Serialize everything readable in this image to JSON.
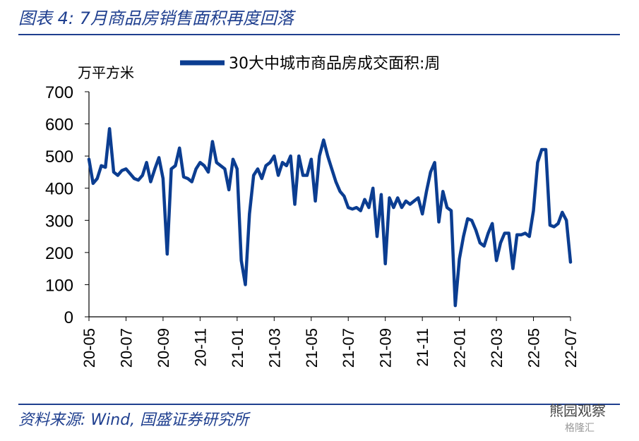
{
  "figure_title": "图表 4:  7月商品房销售面积再度回落",
  "source": "资料来源:  Wind,  国盛证券研究所",
  "watermark": "熊园观察",
  "watermark_sub": "格隆汇",
  "colors": {
    "line": "#0b3d91",
    "accent": "#1f3f8f"
  },
  "chart_data": {
    "type": "line",
    "ylabel": "万平方米",
    "ylim": [
      0,
      700
    ],
    "yticks": [
      0,
      100,
      200,
      300,
      400,
      500,
      600,
      700
    ],
    "xticks": [
      "20-05",
      "20-07",
      "20-09",
      "20-11",
      "21-01",
      "21-03",
      "21-05",
      "21-07",
      "21-09",
      "21-11",
      "22-01",
      "22-03",
      "22-05",
      "22-07"
    ],
    "grid": false,
    "legend_position": "top",
    "series": [
      {
        "name": "30大中城市商品房成交面积:周",
        "values": [
          490,
          415,
          430,
          470,
          465,
          585,
          450,
          440,
          455,
          460,
          445,
          430,
          425,
          440,
          480,
          420,
          460,
          495,
          430,
          195,
          460,
          470,
          525,
          435,
          430,
          420,
          460,
          480,
          470,
          450,
          545,
          480,
          470,
          460,
          395,
          490,
          460,
          175,
          100,
          320,
          440,
          460,
          430,
          470,
          480,
          500,
          440,
          480,
          470,
          500,
          350,
          500,
          440,
          440,
          490,
          360,
          500,
          550,
          500,
          460,
          420,
          390,
          375,
          340,
          335,
          340,
          330,
          365,
          340,
          400,
          250,
          380,
          165,
          370,
          340,
          370,
          340,
          360,
          350,
          360,
          370,
          320,
          390,
          450,
          480,
          295,
          390,
          340,
          330,
          35,
          180,
          250,
          305,
          300,
          270,
          230,
          220,
          260,
          290,
          175,
          230,
          260,
          260,
          150,
          255,
          255,
          260,
          250,
          330,
          480,
          520,
          520,
          285,
          280,
          290,
          325,
          300,
          170
        ],
        "color": "#0b3d91"
      }
    ]
  }
}
